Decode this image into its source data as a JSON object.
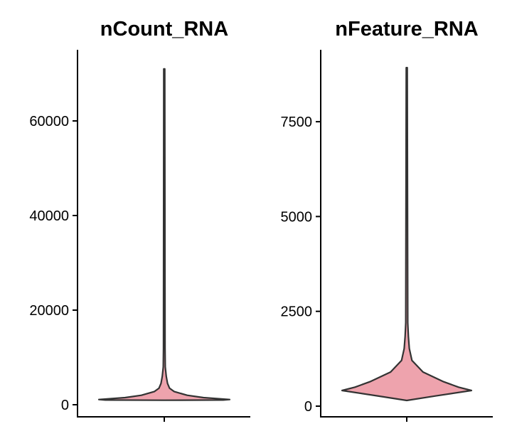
{
  "chart_data": [
    {
      "type": "violin",
      "title": "nCount_RNA",
      "xlabel": "",
      "ylabel": "",
      "ylim": [
        -2500,
        75000
      ],
      "yticks": [
        0,
        20000,
        40000,
        60000
      ],
      "ytick_labels": [
        "0",
        "20000",
        "40000",
        "60000"
      ],
      "fill": "#EEA3AD",
      "min": 1000,
      "max": 71000,
      "density_profile": [
        [
          950,
          0
        ],
        [
          1000,
          0.9
        ],
        [
          1100,
          1.0
        ],
        [
          1500,
          0.6
        ],
        [
          2000,
          0.35
        ],
        [
          2800,
          0.15
        ],
        [
          3500,
          0.08
        ],
        [
          4500,
          0.05
        ],
        [
          6000,
          0.03
        ],
        [
          8000,
          0.015
        ],
        [
          12000,
          0.012
        ],
        [
          71000,
          0.008
        ]
      ]
    },
    {
      "type": "violin",
      "title": "nFeature_RNA",
      "xlabel": "",
      "ylabel": "",
      "ylim": [
        -300,
        9400
      ],
      "yticks": [
        0,
        2500,
        5000,
        7500
      ],
      "ytick_labels": [
        "0",
        "2500",
        "5000",
        "7500"
      ],
      "fill": "#EEA3AD",
      "min": 150,
      "max": 8925,
      "density_profile": [
        [
          150,
          0
        ],
        [
          270,
          0.45
        ],
        [
          412,
          1.0
        ],
        [
          500,
          0.8
        ],
        [
          643,
          0.57
        ],
        [
          900,
          0.25
        ],
        [
          1206,
          0.08
        ],
        [
          1520,
          0.04
        ],
        [
          1840,
          0.025
        ],
        [
          2200,
          0.015
        ],
        [
          8925,
          0.008
        ]
      ]
    }
  ]
}
